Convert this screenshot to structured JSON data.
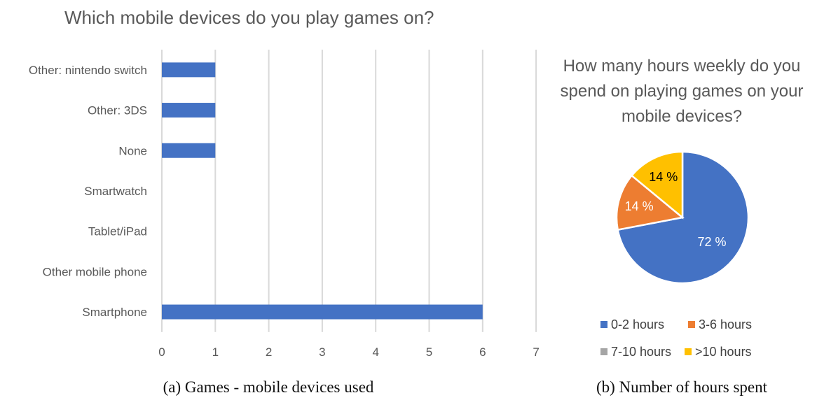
{
  "chart_data": [
    {
      "type": "bar",
      "orientation": "horizontal",
      "title": "Which mobile devices do you play games on?",
      "categories": [
        "Other: nintendo switch",
        "Other: 3DS",
        "None",
        "Smartwatch",
        "Tablet/iPad",
        "Other mobile phone",
        "Smartphone"
      ],
      "values": [
        1,
        1,
        1,
        0,
        0,
        0,
        6
      ],
      "xlim": [
        0,
        7
      ],
      "xticks": [
        "0",
        "1",
        "2",
        "3",
        "4",
        "5",
        "6",
        "7"
      ],
      "grid": true,
      "bar_color": "#4472c4",
      "caption": "(a) Games - mobile devices used"
    },
    {
      "type": "pie",
      "title_lines": [
        "How many hours weekly do you",
        "spend on playing games on your",
        "mobile devices?"
      ],
      "slices": [
        {
          "label": "0-2 hours",
          "value": 72,
          "text": "72 %",
          "color": "#4472c4",
          "text_color": "#ffffff"
        },
        {
          "label": "3-6 hours",
          "value": 14,
          "text": "14 %",
          "color": "#ed7d31",
          "text_color": "#ffffff"
        },
        {
          "label": "7-10 hours",
          "value": 0,
          "text": "",
          "color": "#a5a5a5",
          "text_color": "#ffffff"
        },
        {
          "label": ">10 hours",
          "value": 14,
          "text": "14 %",
          "color": "#ffc000",
          "text_color": "#000000"
        }
      ],
      "legend_position": "bottom",
      "caption": "(b) Number of hours spent"
    }
  ]
}
